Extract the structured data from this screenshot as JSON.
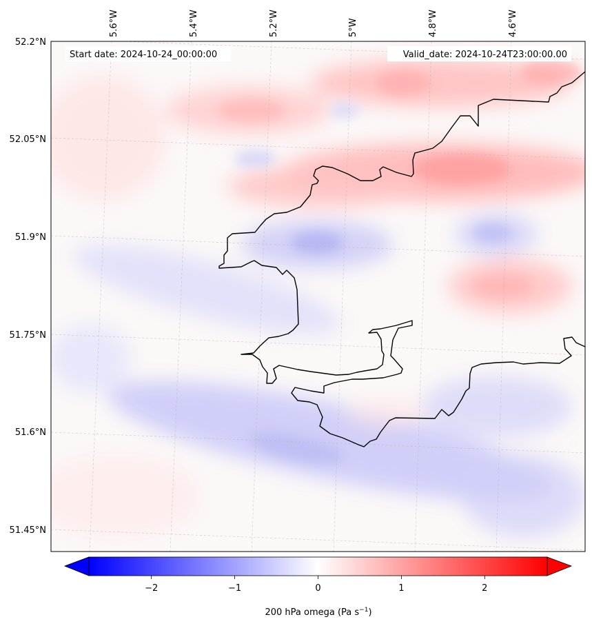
{
  "map": {
    "start_label": "Start date: 2024-10-24_00:00:00",
    "valid_label": "Valid_date: 2024-10-24T23:00:00.00",
    "lon_labels": [
      "5.6°W",
      "5.4°W",
      "5.2°W",
      "5°W",
      "4.8°W",
      "4.6°W"
    ],
    "lat_labels": [
      "52.2°N",
      "52.05°N",
      "51.9°N",
      "51.75°N",
      "51.6°N",
      "51.45°N"
    ]
  },
  "colorbar": {
    "ticks": [
      "−2",
      "−1",
      "0",
      "1",
      "2"
    ],
    "tick_values": [
      -2,
      -1,
      0,
      1,
      2
    ],
    "vmin": -2.75,
    "vmax": 2.75,
    "label_main": "200 hPa omega (Pa s",
    "label_exp": "−1",
    "label_close": ")",
    "negative_color": "#0000ff",
    "positive_color": "#ff0000",
    "neutral_color": "#ffffff"
  },
  "chart_data": {
    "type": "heatmap",
    "title": "",
    "variable": "200 hPa omega (Pa s−1)",
    "color_range": [
      -2.75,
      2.75
    ],
    "colormap": "bwr",
    "legend_placement": "bottom",
    "fields": [
      {
        "region": "upper-right band near 52.0°N, 4.7°W",
        "sign": "positive",
        "approx_value": 0.8
      },
      {
        "region": "top band near 52.15°N, 5.0°W–4.6°W",
        "sign": "positive",
        "approx_value": 0.6
      },
      {
        "region": "left band near 52.1°N, 5.4°W",
        "sign": "positive",
        "approx_value": 0.5
      },
      {
        "region": "center near 51.88°N, 5.05°W",
        "sign": "negative",
        "approx_value": -0.5
      },
      {
        "region": "southern band near 51.6°N, 5.2°W–4.6°W",
        "sign": "negative",
        "approx_value": -0.4
      },
      {
        "region": "east near 51.82°N, 4.65°W",
        "sign": "positive",
        "approx_value": 0.5
      }
    ]
  }
}
